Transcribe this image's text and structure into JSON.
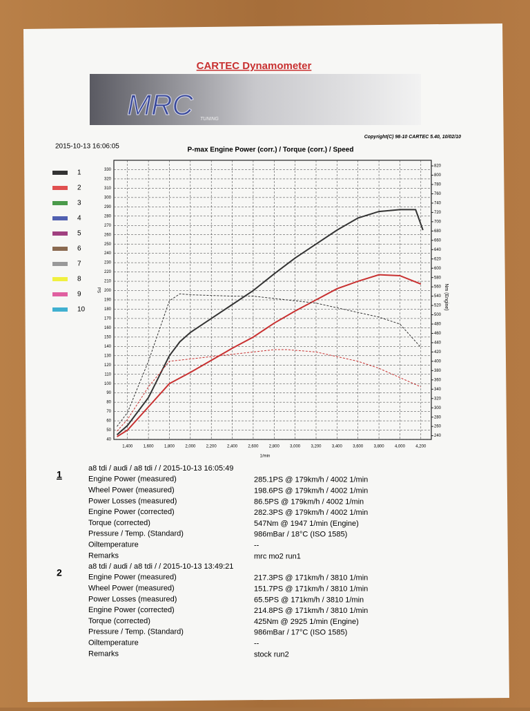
{
  "header": {
    "title": "CARTEC Dynamometer",
    "logo": "MRC",
    "logo_sub": "TUNING",
    "copyright": "Copyright(C) 98-10 CARTEC 5.40, 10/02/10",
    "date": "2015-10-13 16:06:05"
  },
  "chart_data": {
    "type": "line",
    "title": "P-max Engine Power (corr.) / Torque (corr.) / Speed",
    "x_label": "1/min",
    "y_label": "PS",
    "y2_label": "Nm (Engine)",
    "xlim": [
      1270,
      4300
    ],
    "xticks": [
      {
        "value": 1400,
        "label": "1,400"
      },
      {
        "value": 1600,
        "label": "1,600"
      },
      {
        "value": 1800,
        "label": "1,800"
      },
      {
        "value": 2000,
        "label": "2,000"
      },
      {
        "value": 2200,
        "label": "2,200"
      },
      {
        "value": 2400,
        "label": "2,400"
      },
      {
        "value": 2600,
        "label": "2,600"
      },
      {
        "value": 2800,
        "label": "2,800"
      },
      {
        "value": 3000,
        "label": "3,000"
      },
      {
        "value": 3200,
        "label": "3,200"
      },
      {
        "value": 3400,
        "label": "3,400"
      },
      {
        "value": 3600,
        "label": "3,600"
      },
      {
        "value": 3800,
        "label": "3,800"
      },
      {
        "value": 4000,
        "label": "4,000"
      },
      {
        "value": 4200,
        "label": "4,200"
      }
    ],
    "ylim": [
      40,
      340
    ],
    "yticks": [
      40,
      50,
      60,
      70,
      80,
      90,
      100,
      110,
      120,
      130,
      140,
      150,
      160,
      170,
      180,
      190,
      200,
      210,
      220,
      230,
      240,
      250,
      260,
      270,
      280,
      290,
      300,
      310,
      320,
      330
    ],
    "y2lim": [
      232,
      832
    ],
    "y2ticks": [
      240,
      260,
      280,
      300,
      320,
      340,
      360,
      380,
      400,
      420,
      440,
      460,
      480,
      500,
      520,
      540,
      560,
      580,
      600,
      620,
      640,
      660,
      680,
      700,
      720,
      740,
      760,
      780,
      800,
      820
    ],
    "grid": true,
    "legend": [
      {
        "label": "1",
        "color": "#333333"
      },
      {
        "label": "2",
        "color": "#e05050"
      },
      {
        "label": "3",
        "color": "#4a9a4a"
      },
      {
        "label": "4",
        "color": "#5060b0"
      },
      {
        "label": "5",
        "color": "#a04080"
      },
      {
        "label": "6",
        "color": "#8a6a50"
      },
      {
        "label": "7",
        "color": "#999999"
      },
      {
        "label": "8",
        "color": "#f0f040"
      },
      {
        "label": "9",
        "color": "#e060a0"
      },
      {
        "label": "10",
        "color": "#40b0d0"
      }
    ],
    "series": [
      {
        "color": "#333333",
        "dash": false,
        "x": [
          1300,
          1400,
          1600,
          1800,
          1900,
          2000,
          2200,
          2400,
          2600,
          2800,
          3000,
          3200,
          3400,
          3600,
          3800,
          4000,
          4150,
          4220
        ],
        "values": [
          45,
          55,
          85,
          130,
          145,
          155,
          170,
          185,
          200,
          218,
          235,
          250,
          265,
          278,
          285,
          287,
          287,
          265
        ]
      },
      {
        "color": "#c83030",
        "dash": false,
        "x": [
          1300,
          1400,
          1600,
          1800,
          2000,
          2200,
          2400,
          2600,
          2800,
          3000,
          3200,
          3400,
          3600,
          3800,
          4000,
          4200
        ],
        "values": [
          43,
          50,
          75,
          100,
          112,
          125,
          138,
          150,
          165,
          178,
          190,
          202,
          210,
          217,
          216,
          207
        ]
      },
      {
        "color": "#333333",
        "dash": true,
        "axis": "y2",
        "x": [
          1300,
          1400,
          1600,
          1800,
          1900,
          2000,
          2400,
          2600,
          2800,
          3000,
          3200,
          3400,
          3600,
          3800,
          4000,
          4200
        ],
        "values": [
          260,
          290,
          400,
          530,
          545,
          543,
          540,
          540,
          535,
          530,
          525,
          515,
          505,
          495,
          480,
          430
        ]
      },
      {
        "color": "#c83030",
        "dash": true,
        "axis": "y2",
        "x": [
          1300,
          1400,
          1600,
          1800,
          2000,
          2400,
          2800,
          2925,
          3200,
          3400,
          3600,
          3800,
          4000,
          4200
        ],
        "values": [
          250,
          275,
          345,
          400,
          405,
          415,
          425,
          425,
          420,
          410,
          400,
          385,
          365,
          345
        ]
      }
    ]
  },
  "runs": [
    {
      "number": "1",
      "header": "a8 tdi / audi / a8 tdi /  / 2015-10-13 16:05:49",
      "rows": [
        [
          "Engine Power (measured)",
          "285.1PS @ 179km/h / 4002 1/min"
        ],
        [
          "Wheel Power (measured)",
          "198.6PS @ 179km/h / 4002 1/min"
        ],
        [
          "Power Losses (measured)",
          "86.5PS @ 179km/h / 4002 1/min"
        ],
        [
          "Engine Power (corrected)",
          "282.3PS @ 179km/h / 4002 1/min"
        ],
        [
          "Torque (corrected)",
          "547Nm @ 1947 1/min (Engine)"
        ],
        [
          "Pressure / Temp. (Standard)",
          "986mBar / 18°C   (ISO 1585)"
        ],
        [
          "Oiltemperature",
          "--"
        ],
        [
          "Remarks",
          "mrc mo2 run1"
        ]
      ]
    },
    {
      "number": "2",
      "header": "a8 tdi / audi / a8 tdi /  / 2015-10-13 13:49:21",
      "rows": [
        [
          "Engine Power (measured)",
          "217.3PS @ 171km/h / 3810 1/min"
        ],
        [
          "Wheel Power (measured)",
          "151.7PS @ 171km/h / 3810 1/min"
        ],
        [
          "Power Losses (measured)",
          "65.5PS @ 171km/h / 3810 1/min"
        ],
        [
          "Engine Power (corrected)",
          "214.8PS @ 171km/h / 3810 1/min"
        ],
        [
          "Torque (corrected)",
          "425Nm @ 2925 1/min (Engine)"
        ],
        [
          "Pressure / Temp. (Standard)",
          "986mBar / 17°C   (ISO 1585)"
        ],
        [
          "Oiltemperature",
          "--"
        ],
        [
          "Remarks",
          "stock run2"
        ]
      ]
    }
  ]
}
